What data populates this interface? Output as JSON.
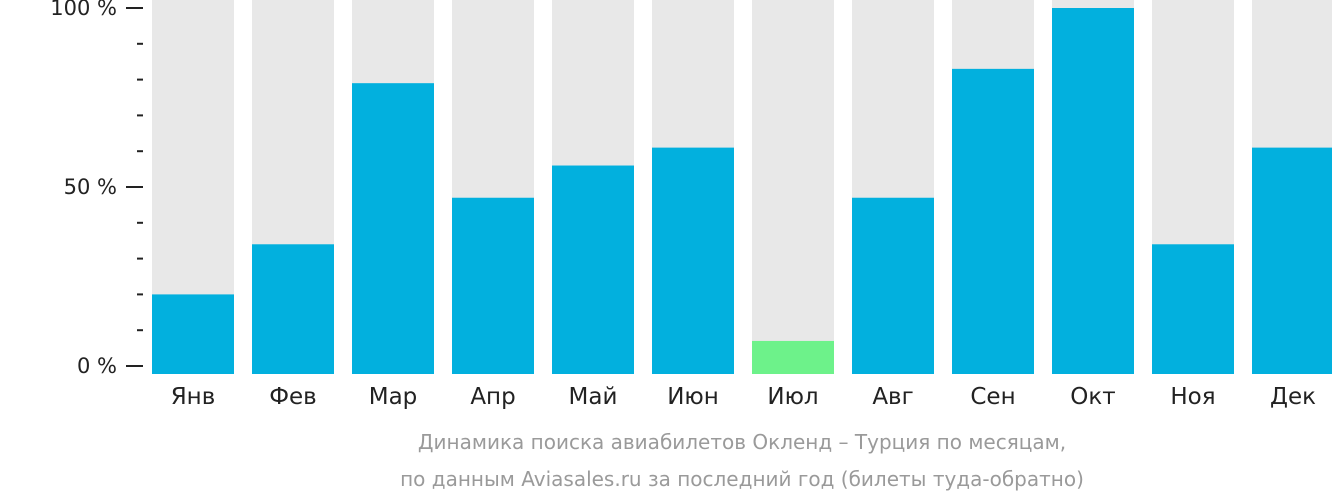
{
  "chart_data": {
    "type": "bar",
    "categories": [
      "Янв",
      "Фев",
      "Мар",
      "Апр",
      "Май",
      "Июн",
      "Июл",
      "Авг",
      "Сен",
      "Окт",
      "Ноя",
      "Дек"
    ],
    "values": [
      20,
      34,
      79,
      47,
      56,
      61,
      7,
      47,
      83,
      100,
      34,
      61
    ],
    "highlight_index": 6,
    "ylim": [
      0,
      100
    ],
    "yticks": [
      {
        "value": 0,
        "label": "0 %"
      },
      {
        "value": 50,
        "label": "50 %"
      },
      {
        "value": 100,
        "label": "100 %"
      }
    ],
    "minor_ticks_between_labels": 4,
    "grid": false,
    "colors": {
      "bar": "#02B0DE",
      "highlight": "#6DF28A",
      "track": "#E8E8E8",
      "axis": "#222222"
    },
    "caption_lines": [
      "Динамика поиска авиабилетов Окленд – Турция по месяцам,",
      "по данным Aviasales.ru за последний год (билеты туда-обратно)"
    ]
  }
}
